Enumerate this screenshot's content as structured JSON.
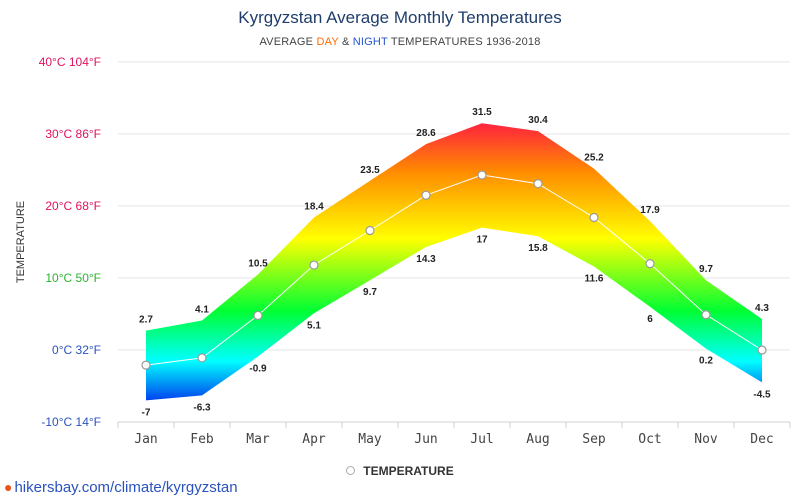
{
  "title": "Kyrgyzstan Average Monthly Temperatures",
  "subtitle": {
    "prefix": "AVERAGE ",
    "day": "DAY",
    "mid": " & ",
    "night": "NIGHT",
    "suffix": " TEMPERATURES 1936-2018"
  },
  "legend": {
    "label": "TEMPERATURE"
  },
  "source": "hikersbay.com/climate/kyrgyzstan",
  "colors": {
    "title": "#1f3d6b",
    "day_word": "#ff6a00",
    "night_word": "#2255cc",
    "hot": "#ff2040",
    "warm": "#ffa500",
    "mild": "#ffff00",
    "cool": "#00ff33",
    "cold": "#00ffff",
    "freezing": "#0044ee"
  },
  "chart_data": {
    "type": "area",
    "title": "Kyrgyzstan Average Monthly Temperatures",
    "ylabel": "TEMPERATURE",
    "ylim": [
      -10,
      40
    ],
    "yticks": [
      {
        "value": 40,
        "label": "40°C 104°F",
        "color": "#e0115f"
      },
      {
        "value": 30,
        "label": "30°C 86°F",
        "color": "#e0115f"
      },
      {
        "value": 20,
        "label": "20°C 68°F",
        "color": "#e0115f"
      },
      {
        "value": 10,
        "label": "10°C 50°F",
        "color": "#2db32d"
      },
      {
        "value": 0,
        "label": "0°C 32°F",
        "color": "#2a52be"
      },
      {
        "value": -10,
        "label": "-10°C 14°F",
        "color": "#2a52be"
      }
    ],
    "categories": [
      "Jan",
      "Feb",
      "Mar",
      "Apr",
      "May",
      "Jun",
      "Jul",
      "Aug",
      "Sep",
      "Oct",
      "Nov",
      "Dec"
    ],
    "series": [
      {
        "values": [
          2.7,
          4.1,
          10.5,
          18.4,
          23.5,
          28.6,
          31.5,
          30.4,
          25.2,
          17.9,
          9.7,
          4.3
        ]
      },
      {
        "values": [
          -7,
          -6.3,
          -0.9,
          5.1,
          9.7,
          14.3,
          17,
          15.8,
          11.6,
          6,
          0.2,
          -4.5
        ]
      },
      {
        "name": "TEMPERATURE",
        "values": [
          -2.1,
          -1.1,
          4.8,
          11.8,
          16.6,
          21.5,
          24.3,
          23.1,
          18.4,
          12,
          4.9,
          0
        ]
      }
    ],
    "grid": true,
    "legend_position": "bottom-center"
  }
}
